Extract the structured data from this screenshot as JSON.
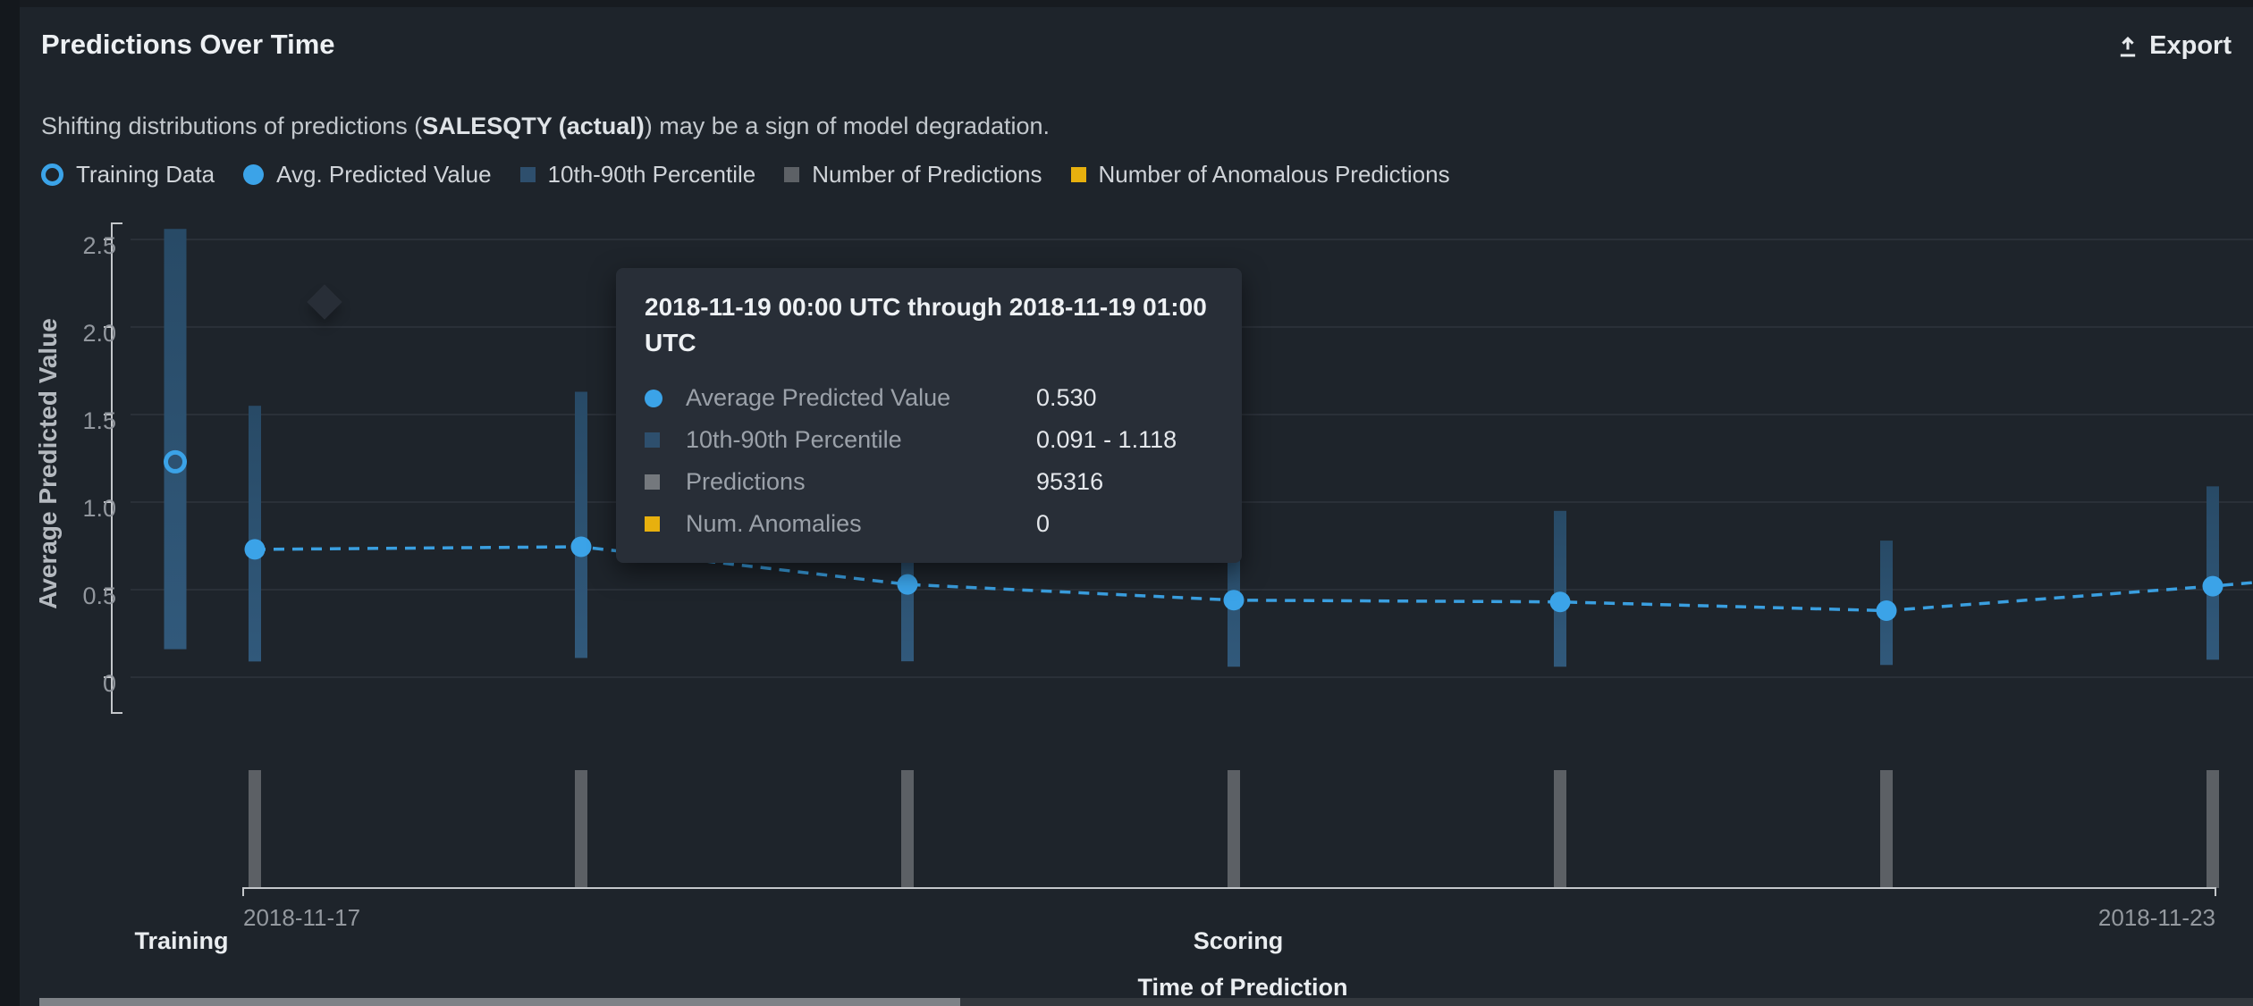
{
  "header": {
    "title": "Predictions Over Time",
    "export_label": "Export"
  },
  "subtitle": {
    "prefix": "Shifting distributions of predictions (",
    "feature": "SALESQTY (actual)",
    "suffix": ") may be a sign of model degradation."
  },
  "legend": [
    {
      "label": "Training Data",
      "marker": "ring",
      "color": "#3ba3e8"
    },
    {
      "label": "Avg. Predicted Value",
      "marker": "dot",
      "color": "#3ba3e8"
    },
    {
      "label": "10th-90th Percentile",
      "marker": "square",
      "color": "#2e4f6d"
    },
    {
      "label": "Number of Predictions",
      "marker": "square",
      "color": "#5d6166"
    },
    {
      "label": "Number of Anomalous Predictions",
      "marker": "square",
      "color": "#e7b00e"
    }
  ],
  "tooltip": {
    "title": "2018-11-19 00:00 UTC through 2018-11-19 01:00 UTC",
    "rows": [
      {
        "marker": "dot",
        "color": "#3ba3e8",
        "label": "Average Predicted Value",
        "value": "0.530"
      },
      {
        "marker": "square",
        "color": "#2e4f6d",
        "label": "10th-90th Percentile",
        "value": "0.091 - 1.118"
      },
      {
        "marker": "square",
        "color": "#74787d",
        "label": "Predictions",
        "value": "95316"
      },
      {
        "marker": "square",
        "color": "#e7b00e",
        "label": "Num. Anomalies",
        "value": "0"
      }
    ]
  },
  "chart_data": {
    "type": "line",
    "title": "Predictions Over Time",
    "ylabel": "Average Predicted Value",
    "xlabel": "Time of Prediction",
    "y_ticks": [
      0,
      0.5,
      1.0,
      1.5,
      2.0,
      2.5
    ],
    "ylim": [
      -0.2,
      2.6
    ],
    "x_start_label": "2018-11-17",
    "x_end_label": "2018-11-23",
    "sections": {
      "training_label": "Training",
      "scoring_label": "Scoring"
    },
    "training": {
      "avg_predicted": 1.23,
      "p10": 0.16,
      "p90": 2.56
    },
    "scoring": [
      {
        "avg_predicted": 0.73,
        "p10": 0.09,
        "p90": 1.55
      },
      {
        "avg_predicted": 0.745,
        "p10": 0.11,
        "p90": 1.63
      },
      {
        "avg_predicted": 0.53,
        "p10": 0.091,
        "p90": 1.118,
        "predictions": 95316,
        "anomalies": 0,
        "bucket": "2018-11-19 00:00 UTC through 2018-11-19 01:00 UTC"
      },
      {
        "avg_predicted": 0.44,
        "p10": 0.06,
        "p90": 0.93
      },
      {
        "avg_predicted": 0.43,
        "p10": 0.06,
        "p90": 0.95
      },
      {
        "avg_predicted": 0.38,
        "p10": 0.07,
        "p90": 0.78
      },
      {
        "avg_predicted": 0.52,
        "p10": 0.1,
        "p90": 1.09
      }
    ],
    "predictions_histogram_relative_heights": [
      1,
      1,
      1,
      1,
      1,
      1,
      1
    ],
    "legend_position": "top",
    "grid": true,
    "colors": {
      "point": "#3ba3e8",
      "dash_line": "#3a9fe0",
      "percentile_bar_top": "#284a66",
      "percentile_bar_bottom": "#31597b",
      "histogram_bar": "#5c6065",
      "gridline": "#2a3038",
      "axis": "#c4c7cb",
      "anomaly": "#e7b00e"
    }
  }
}
